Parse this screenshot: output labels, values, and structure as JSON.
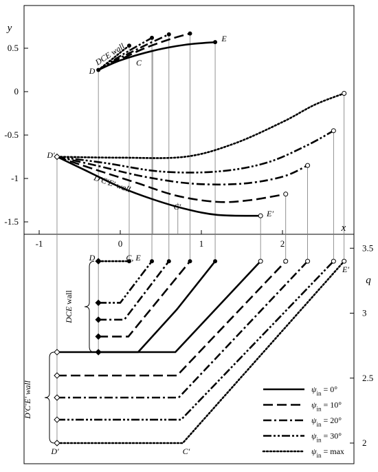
{
  "chart_data": [
    {
      "type": "line",
      "panel": "top",
      "xlabel": "x",
      "ylabel": "y",
      "xlim": [
        -1.15,
        2.95
      ],
      "ylim": [
        -1.75,
        0.9
      ],
      "x_ticks": [
        "-1",
        "0",
        "1",
        "2"
      ],
      "y_ticks": [
        "0.5",
        "0",
        "-0.5",
        "-1",
        "-1.5"
      ],
      "x_tick_values": [
        -1,
        0,
        1,
        2
      ],
      "y_tick_values": [
        0.5,
        0,
        -0.5,
        -1,
        -1.5
      ],
      "series": [
        {
          "name": "ψin = 0°",
          "style": "solid",
          "wall_DCE": [
            [
              -0.27,
              0.25
            ],
            [
              0.0,
              0.36
            ],
            [
              0.4,
              0.47
            ],
            [
              0.8,
              0.54
            ],
            [
              1.17,
              0.57
            ]
          ],
          "wall_DpCpEp": [
            [
              -0.78,
              -0.75
            ],
            [
              -0.4,
              -0.92
            ],
            [
              0.0,
              -1.1
            ],
            [
              0.4,
              -1.24
            ],
            [
              0.8,
              -1.35
            ],
            [
              1.2,
              -1.42
            ],
            [
              1.73,
              -1.43
            ]
          ]
        },
        {
          "name": "ψin = 10°",
          "style": "long-dash",
          "wall_DCE": [
            [
              -0.27,
              0.25
            ],
            [
              0.0,
              0.37
            ],
            [
              0.3,
              0.5
            ],
            [
              0.6,
              0.6
            ],
            [
              0.86,
              0.67
            ]
          ],
          "wall_DpCpEp": [
            [
              -0.78,
              -0.75
            ],
            [
              -0.4,
              -0.87
            ],
            [
              0.2,
              -1.05
            ],
            [
              0.7,
              -1.2
            ],
            [
              1.2,
              -1.27
            ],
            [
              1.6,
              -1.25
            ],
            [
              2.04,
              -1.18
            ]
          ]
        },
        {
          "name": "ψin = 20°",
          "style": "dash-dot",
          "wall_DCE": [
            [
              -0.27,
              0.25
            ],
            [
              0.0,
              0.39
            ],
            [
              0.3,
              0.53
            ],
            [
              0.6,
              0.66
            ]
          ],
          "wall_DpCpEp": [
            [
              -0.78,
              -0.75
            ],
            [
              -0.3,
              -0.85
            ],
            [
              0.3,
              -0.98
            ],
            [
              0.9,
              -1.06
            ],
            [
              1.5,
              -1.06
            ],
            [
              2.0,
              -0.98
            ],
            [
              2.31,
              -0.85
            ]
          ]
        },
        {
          "name": "ψin = 30°",
          "style": "dash-dot-dot",
          "wall_DCE": [
            [
              -0.27,
              0.25
            ],
            [
              0.0,
              0.41
            ],
            [
              0.2,
              0.52
            ],
            [
              0.39,
              0.62
            ]
          ],
          "wall_DpCpEp": [
            [
              -0.78,
              -0.75
            ],
            [
              -0.2,
              -0.82
            ],
            [
              0.5,
              -0.92
            ],
            [
              1.2,
              -0.92
            ],
            [
              1.8,
              -0.82
            ],
            [
              2.3,
              -0.62
            ],
            [
              2.63,
              -0.45
            ]
          ]
        },
        {
          "name": "ψin = max",
          "style": "dotted",
          "wall_DCE": [
            [
              -0.27,
              0.25
            ],
            [
              -0.12,
              0.36
            ],
            [
              0.0,
              0.45
            ],
            [
              0.11,
              0.53
            ]
          ],
          "wall_DpCpEp": [
            [
              -0.78,
              -0.75
            ],
            [
              0.0,
              -0.76
            ],
            [
              0.8,
              -0.75
            ],
            [
              1.4,
              -0.6
            ],
            [
              2.0,
              -0.35
            ],
            [
              2.4,
              -0.15
            ],
            [
              2.76,
              -0.02
            ]
          ]
        }
      ]
    },
    {
      "type": "line",
      "panel": "bottom",
      "xlabel": "",
      "ylabel": "q",
      "ylim": [
        1.98,
        3.6
      ],
      "y_ticks": [
        "3.5",
        "3",
        "2.5",
        "2"
      ],
      "y_tick_values": [
        3.5,
        3,
        2.5,
        2
      ],
      "series": [
        {
          "name": "ψin = 0°",
          "q_DCE": [
            [
              -0.27,
              2.7
            ],
            [
              0.22,
              2.7
            ],
            [
              0.7,
              3.03
            ],
            [
              1.17,
              3.4
            ]
          ],
          "q_DpCpEp": [
            [
              -0.78,
              2.7
            ],
            [
              0.68,
              2.7
            ],
            [
              1.73,
              3.4
            ]
          ]
        },
        {
          "name": "ψin = 10°",
          "q_DCE": [
            [
              -0.27,
              2.82
            ],
            [
              0.1,
              2.82
            ],
            [
              0.86,
              3.4
            ]
          ],
          "q_DpCpEp": [
            [
              -0.78,
              2.52
            ],
            [
              0.7,
              2.52
            ],
            [
              2.04,
              3.4
            ]
          ]
        },
        {
          "name": "ψin = 20°",
          "q_DCE": [
            [
              -0.27,
              2.95
            ],
            [
              0.05,
              2.95
            ],
            [
              0.6,
              3.4
            ]
          ],
          "q_DpCpEp": [
            [
              -0.78,
              2.35
            ],
            [
              0.72,
              2.35
            ],
            [
              2.31,
              3.4
            ]
          ]
        },
        {
          "name": "ψin = 30°",
          "q_DCE": [
            [
              -0.27,
              3.08
            ],
            [
              0.0,
              3.08
            ],
            [
              0.39,
              3.4
            ]
          ],
          "q_DpCpEp": [
            [
              -0.78,
              2.18
            ],
            [
              0.75,
              2.18
            ],
            [
              2.63,
              3.4
            ]
          ]
        },
        {
          "name": "ψin = max",
          "q_DCE": [
            [
              -0.27,
              3.4
            ],
            [
              0.11,
              3.4
            ]
          ],
          "q_DpCpEp": [
            [
              -0.78,
              2.0
            ],
            [
              0.77,
              2.0
            ],
            [
              2.76,
              3.4
            ]
          ]
        }
      ]
    }
  ],
  "annotations": {
    "D": "D",
    "C": "C",
    "E": "E",
    "Dp": "D′",
    "Cp": "C′",
    "Ep": "E′",
    "DCE_wall": "DCE wall",
    "DpCpEp_wall": "D′C′E′ wall",
    "CE": "C, E",
    "bottom_Dp": "D′",
    "bottom_Cp": "C′",
    "bottom_Ep": "E′",
    "bottom_D": "D",
    "brace_DCE_line1": "DCE",
    "brace_DCE_line2": "wall",
    "brace_DpCpEp": "D′C′E′ wall"
  },
  "legend": [
    {
      "sym": "ψ",
      "sub": "in",
      "rest": " = 0°"
    },
    {
      "sym": "ψ",
      "sub": "in",
      "rest": " = 10°"
    },
    {
      "sym": "ψ",
      "sub": "in",
      "rest": " = 20°"
    },
    {
      "sym": "ψ",
      "sub": "in",
      "rest": " = 30°"
    },
    {
      "sym": "ψ",
      "sub": "in",
      "rest": " = max"
    }
  ]
}
